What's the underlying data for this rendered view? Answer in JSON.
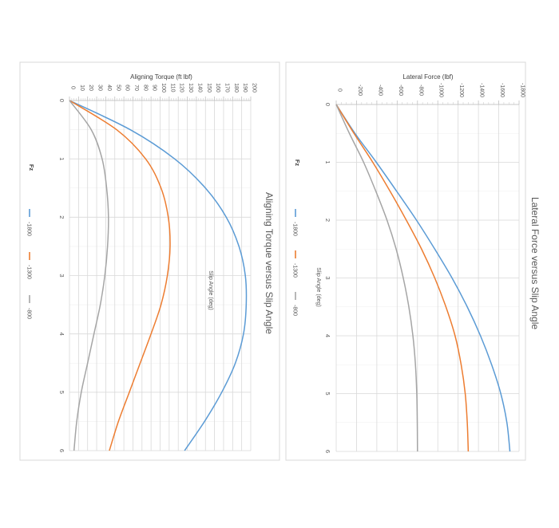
{
  "chart_data": [
    {
      "type": "line",
      "title": "Aligning Torque versus Slip Angle",
      "xlabel": "Slip Angle (deg)",
      "ylabel": "Aligning Torque (ft lbf)",
      "xlim": [
        0,
        6
      ],
      "ylim": [
        0,
        200
      ],
      "x_ticks": [
        "0",
        "1",
        "2",
        "3",
        "4",
        "5",
        "6"
      ],
      "y_ticks": [
        "0",
        "10",
        "20",
        "30",
        "40",
        "50",
        "60",
        "70",
        "80",
        "90",
        "100",
        "110",
        "120",
        "130",
        "140",
        "150",
        "160",
        "170",
        "180",
        "190",
        "200"
      ],
      "grid": true,
      "legend_title": "Fz",
      "legend_position": "bottom",
      "x": [
        0,
        0.5,
        1,
        1.5,
        2,
        2.5,
        3,
        3.5,
        4,
        4.5,
        5,
        5.5,
        6
      ],
      "series": [
        {
          "name": "-1800",
          "color": "#5b9bd5",
          "values": [
            0,
            67,
            116,
            150,
            173,
            187,
            194,
            195,
            192,
            183,
            168,
            149,
            127
          ]
        },
        {
          "name": "-1300",
          "color": "#ed7d31",
          "values": [
            0,
            52,
            84,
            101,
            109,
            111,
            108,
            101,
            90,
            78,
            66,
            54,
            44
          ]
        },
        {
          "name": "-800",
          "color": "#a5a5a5",
          "values": [
            0,
            24,
            36,
            41,
            43,
            42,
            39,
            34,
            27,
            20,
            13,
            8,
            5
          ]
        }
      ]
    },
    {
      "type": "line",
      "title": "Lateral Force versus Slip Angle",
      "xlabel": "Slip Angle (deg)",
      "ylabel": "Lateral Force (lbf)",
      "xlim": [
        0,
        6
      ],
      "ylim": [
        0,
        -1800
      ],
      "x_ticks": [
        "0",
        "1",
        "2",
        "3",
        "4",
        "5",
        "6"
      ],
      "y_ticks": [
        "0",
        "-200",
        "-400",
        "-600",
        "-800",
        "-1000",
        "-1200",
        "-1400",
        "-1600",
        "-1800"
      ],
      "grid": true,
      "legend_title": "Fz",
      "legend_position": "bottom",
      "x": [
        0,
        0.5,
        1,
        1.5,
        2,
        2.5,
        3,
        3.5,
        4,
        4.5,
        5,
        5.5,
        6
      ],
      "series": [
        {
          "name": "-1800",
          "color": "#5b9bd5",
          "values": [
            0,
            -185,
            -395,
            -595,
            -790,
            -970,
            -1140,
            -1290,
            -1420,
            -1530,
            -1620,
            -1680,
            -1710
          ]
        },
        {
          "name": "-1300",
          "color": "#ed7d31",
          "values": [
            0,
            -175,
            -360,
            -530,
            -690,
            -840,
            -970,
            -1080,
            -1170,
            -1230,
            -1270,
            -1290,
            -1300
          ]
        },
        {
          "name": "-800",
          "color": "#a5a5a5",
          "values": [
            0,
            -130,
            -270,
            -390,
            -500,
            -590,
            -660,
            -715,
            -755,
            -780,
            -793,
            -798,
            -800
          ]
        }
      ]
    }
  ]
}
